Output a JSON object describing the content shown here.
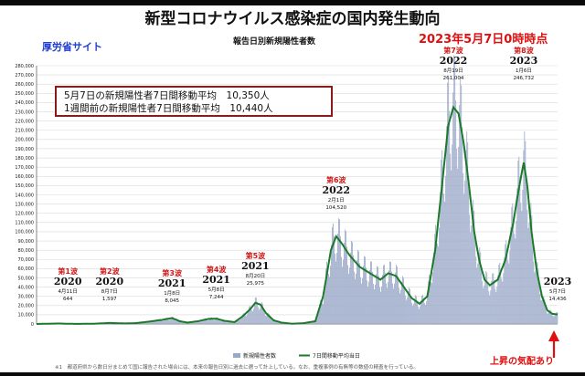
{
  "header": {
    "title": "新型コロナウイルス感染症の国内発生動向",
    "site": "厚労省サイト",
    "subtitle": "報告日別新規陽性者数",
    "as_of": "2023年5月7日0時時点"
  },
  "info_box": {
    "line1": "5月7日の新規陽性者7日間移動平均　10,350人",
    "line2": "1週間前の新規陽性者7日間移動平均　10,440人"
  },
  "annotation": {
    "rising": "上昇の気配あり"
  },
  "footer": {
    "note": "※1　都道府県から数日分まとめて国に報告された場合には、本来の報告日別に過去に遡って計上している。なお、重複事例の有無等の数値の精査を行っている。"
  },
  "colors": {
    "bars": "#9aa8c8",
    "line": "#1a7a2a",
    "wave_label": "#d01818",
    "as_of": "#e01010",
    "site": "#1f3fd0",
    "box_border": "#8b1a1a"
  },
  "chart_data": {
    "type": "bar",
    "title": "報告日別新規陽性者数",
    "ylim": [
      0,
      280000
    ],
    "y_ticks": [
      "0",
      "10,000",
      "20,000",
      "30,000",
      "40,000",
      "50,000",
      "60,000",
      "70,000",
      "80,000",
      "90,000",
      "100,000",
      "110,000",
      "120,000",
      "130,000",
      "140,000",
      "150,000",
      "160,000",
      "170,000",
      "180,000",
      "190,000",
      "200,000",
      "210,000",
      "220,000",
      "230,000",
      "240,000",
      "250,000",
      "260,000",
      "270,000",
      "280,000"
    ],
    "legend": [
      "新規陽性者数",
      "7日間移動平均当日"
    ],
    "grid": true,
    "moving_average_anchors": [
      {
        "x": 0.0,
        "y": 0
      },
      {
        "x": 0.03,
        "y": 400
      },
      {
        "x": 0.045,
        "y": 500
      },
      {
        "x": 0.06,
        "y": 200
      },
      {
        "x": 0.08,
        "y": 100
      },
      {
        "x": 0.11,
        "y": 300
      },
      {
        "x": 0.14,
        "y": 1100
      },
      {
        "x": 0.17,
        "y": 600
      },
      {
        "x": 0.19,
        "y": 900
      },
      {
        "x": 0.215,
        "y": 2500
      },
      {
        "x": 0.24,
        "y": 4400
      },
      {
        "x": 0.26,
        "y": 6400
      },
      {
        "x": 0.275,
        "y": 3000
      },
      {
        "x": 0.29,
        "y": 1500
      },
      {
        "x": 0.31,
        "y": 3000
      },
      {
        "x": 0.33,
        "y": 5500
      },
      {
        "x": 0.345,
        "y": 5800
      },
      {
        "x": 0.36,
        "y": 3500
      },
      {
        "x": 0.38,
        "y": 2000
      },
      {
        "x": 0.395,
        "y": 8000
      },
      {
        "x": 0.41,
        "y": 16000
      },
      {
        "x": 0.42,
        "y": 23000
      },
      {
        "x": 0.43,
        "y": 21000
      },
      {
        "x": 0.44,
        "y": 12000
      },
      {
        "x": 0.455,
        "y": 4000
      },
      {
        "x": 0.47,
        "y": 1500
      },
      {
        "x": 0.49,
        "y": 300
      },
      {
        "x": 0.51,
        "y": 700
      },
      {
        "x": 0.535,
        "y": 3000
      },
      {
        "x": 0.55,
        "y": 30000
      },
      {
        "x": 0.565,
        "y": 80000
      },
      {
        "x": 0.575,
        "y": 95000
      },
      {
        "x": 0.585,
        "y": 88000
      },
      {
        "x": 0.6,
        "y": 75000
      },
      {
        "x": 0.62,
        "y": 62000
      },
      {
        "x": 0.64,
        "y": 55000
      },
      {
        "x": 0.66,
        "y": 48000
      },
      {
        "x": 0.675,
        "y": 55000
      },
      {
        "x": 0.69,
        "y": 52000
      },
      {
        "x": 0.705,
        "y": 40000
      },
      {
        "x": 0.72,
        "y": 28000
      },
      {
        "x": 0.735,
        "y": 22000
      },
      {
        "x": 0.75,
        "y": 30000
      },
      {
        "x": 0.765,
        "y": 80000
      },
      {
        "x": 0.78,
        "y": 160000
      },
      {
        "x": 0.79,
        "y": 215000
      },
      {
        "x": 0.8,
        "y": 235000
      },
      {
        "x": 0.81,
        "y": 228000
      },
      {
        "x": 0.82,
        "y": 195000
      },
      {
        "x": 0.83,
        "y": 150000
      },
      {
        "x": 0.84,
        "y": 100000
      },
      {
        "x": 0.85,
        "y": 68000
      },
      {
        "x": 0.86,
        "y": 48000
      },
      {
        "x": 0.87,
        "y": 42000
      },
      {
        "x": 0.885,
        "y": 48000
      },
      {
        "x": 0.9,
        "y": 70000
      },
      {
        "x": 0.915,
        "y": 110000
      },
      {
        "x": 0.925,
        "y": 145000
      },
      {
        "x": 0.935,
        "y": 175000
      },
      {
        "x": 0.942,
        "y": 150000
      },
      {
        "x": 0.95,
        "y": 100000
      },
      {
        "x": 0.96,
        "y": 58000
      },
      {
        "x": 0.97,
        "y": 30000
      },
      {
        "x": 0.98,
        "y": 15000
      },
      {
        "x": 0.99,
        "y": 11000
      },
      {
        "x": 1.0,
        "y": 10350
      }
    ],
    "waves": [
      {
        "label": "第1波",
        "year": "2020",
        "date": "4月11日",
        "value": 644,
        "x": 0.06
      },
      {
        "label": "第2波",
        "year": "2020",
        "date": "8月7日",
        "value": 1597,
        "x": 0.14
      },
      {
        "label": "第3波",
        "year": "2021",
        "date": "1月8日",
        "value": 8045,
        "x": 0.26
      },
      {
        "label": "第4波",
        "year": "2021",
        "date": "5月8日",
        "value": 7244,
        "x": 0.345
      },
      {
        "label": "第5波",
        "year": "2021",
        "date": "8月20日",
        "value": 25975,
        "x": 0.42
      },
      {
        "label": "第6波",
        "year": "2022",
        "date": "2月1日",
        "value": 104520,
        "x": 0.575
      },
      {
        "label": "第7波",
        "year": "2022",
        "date": "8月19日",
        "value": 261004,
        "x": 0.8
      },
      {
        "label": "第8波",
        "year": "2023",
        "date": "1月6日",
        "value": 246732,
        "x": 0.935
      },
      {
        "label": "",
        "year": "2023",
        "date": "5月7日",
        "value": 14436,
        "x": 1.0
      }
    ]
  }
}
